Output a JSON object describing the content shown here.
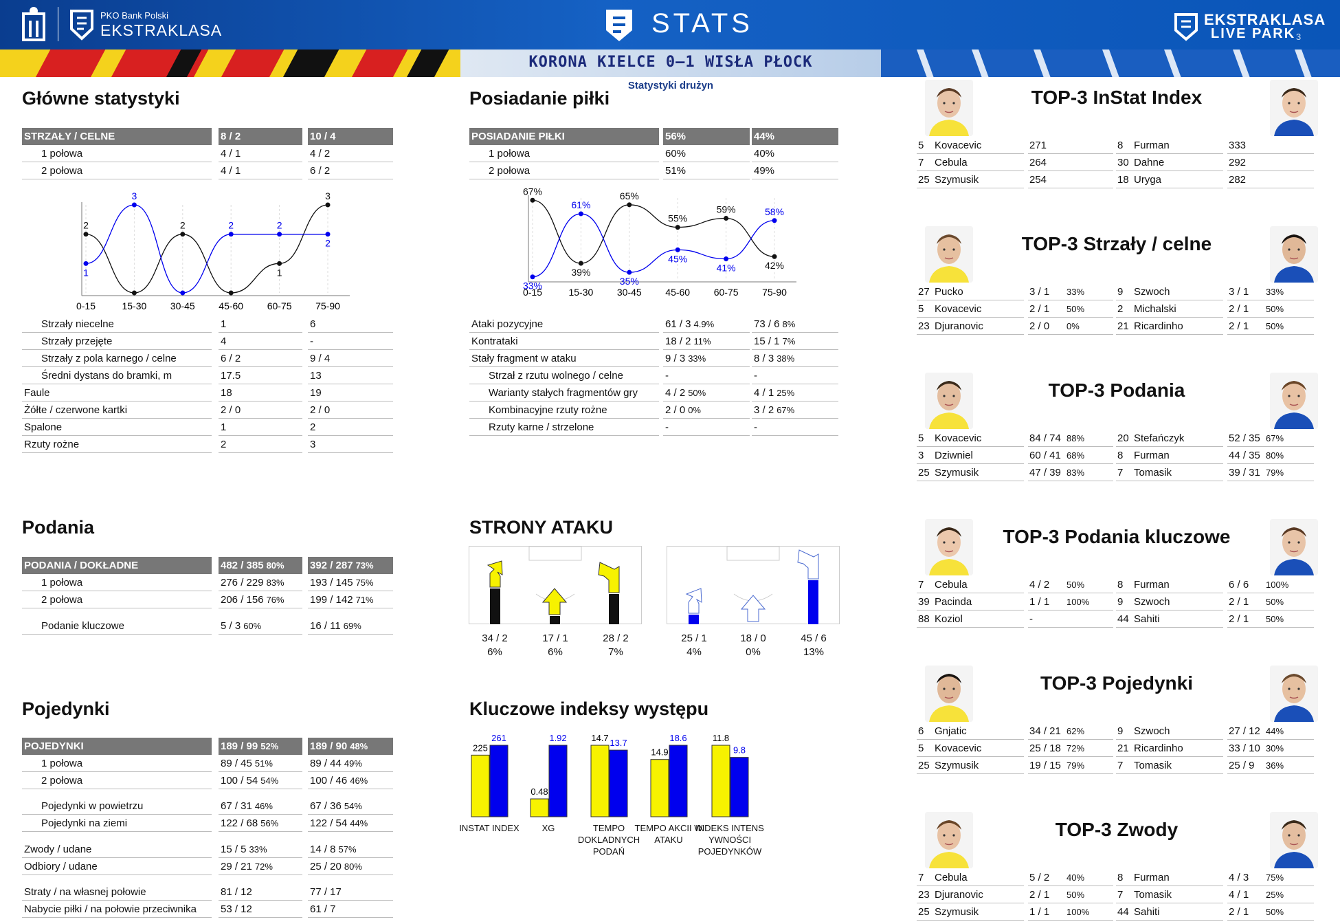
{
  "header": {
    "brand_small": "PKO Bank Polski",
    "brand": "EKSTRAKLASA",
    "title": "STATS",
    "right_brand": "EKSTRAKLASA",
    "right_sub": "LIVE PARK",
    "page": "3"
  },
  "match": {
    "title": "KORONA KIELCE 0–1 WISŁA PŁOCK",
    "subtitle": "Statystyki drużyn"
  },
  "colors": {
    "home": "#f7f200",
    "away": "#0000ee",
    "header_blue": "#0a55b8",
    "table_header": "#777777"
  },
  "main": {
    "title": "Główne statystyki",
    "header": [
      "STRZAŁY / CELNE",
      "8 / 2",
      "10 / 4"
    ],
    "rows": [
      [
        "1 połowa",
        "4 / 1",
        "4 / 2"
      ],
      [
        "2 połowa",
        "4 / 1",
        "6 / 2"
      ]
    ],
    "rows2": [
      [
        "Strzały niecelne",
        "1",
        "6"
      ],
      [
        "Strzały przejęte",
        "4",
        "-"
      ],
      [
        "Strzały z pola karnego / celne",
        "6 / 2",
        "9 / 4"
      ],
      [
        "Średni dystans do bramki, m",
        "17.5",
        "13"
      ],
      [
        "Faule",
        "18",
        "19"
      ],
      [
        "Żółte / czerwone kartki",
        "2 / 0",
        "2 / 0"
      ],
      [
        "Spalone",
        "1",
        "2"
      ],
      [
        "Rzuty rożne",
        "2",
        "3"
      ]
    ]
  },
  "possession": {
    "title": "Posiadanie piłki",
    "header": [
      "POSIADANIE PIŁKI",
      "56%",
      "44%"
    ],
    "rows": [
      [
        "1 połowa",
        "60%",
        "40%"
      ],
      [
        "2 połowa",
        "51%",
        "49%"
      ]
    ],
    "rows2": [
      [
        "Ataki pozycyjne",
        "61 / 3",
        "4.9%",
        "73 / 6",
        "8%"
      ],
      [
        "Kontrataki",
        "18 / 2",
        "11%",
        "15 / 1",
        "7%"
      ],
      [
        "Stały fragment w ataku",
        "9 / 3",
        "33%",
        "8 / 3",
        "38%"
      ],
      [
        "Strzał z rzutu wolnego / celne",
        "-",
        "",
        "-",
        ""
      ],
      [
        "Warianty stałych fragmentów gry",
        "4 / 2",
        "50%",
        "4 / 1",
        "25%"
      ],
      [
        "Kombinacyjne rzuty rożne",
        "2 / 0",
        "0%",
        "3 / 2",
        "67%"
      ],
      [
        "Rzuty karne /  strzelone",
        "-",
        "",
        "-",
        ""
      ]
    ]
  },
  "chart_data": [
    {
      "type": "line",
      "categories": [
        "0-15",
        "15-30",
        "30-45",
        "45-60",
        "60-75",
        "75-90"
      ],
      "series": [
        {
          "values": [
            2,
            0,
            2,
            0,
            1,
            3
          ],
          "labels": [
            "2",
            "",
            "2",
            "",
            "1",
            "3"
          ]
        },
        {
          "values": [
            1,
            3,
            0,
            2,
            2,
            2
          ],
          "labels": [
            "1",
            "3",
            "",
            "2",
            "2",
            "2"
          ]
        }
      ],
      "xlabel": "",
      "ylabel": "",
      "ylim": [
        0,
        3
      ],
      "grid": false
    },
    {
      "type": "line",
      "categories": [
        "0-15",
        "15-30",
        "30-45",
        "45-60",
        "60-75",
        "75-90"
      ],
      "series": [
        {
          "values": [
            67,
            39,
            65,
            55,
            59,
            42
          ],
          "labels": [
            "67%",
            "39%",
            "65%",
            "55%",
            "59%",
            "42%"
          ]
        },
        {
          "values": [
            33,
            61,
            35,
            45,
            41,
            58
          ],
          "labels": [
            "33%",
            "61%",
            "35%",
            "45%",
            "41%",
            "58%"
          ]
        }
      ],
      "xlabel": "",
      "ylabel": "",
      "ylim": [
        30,
        70
      ],
      "grid": false
    },
    {
      "type": "bar",
      "title": "Kluczowe indeksy występu",
      "categories": [
        "INSTAT INDEX",
        "XG",
        "TEMPO DOKLADNYCH PODAŃ",
        "TEMPO AKCII W ATAKU",
        "INDEKS INTENSYWNOŚCI POJEDYNKÓW"
      ],
      "series": [
        {
          "values": [
            225,
            0.48,
            14.7,
            14.9,
            11.8
          ]
        },
        {
          "values": [
            261,
            1.92,
            13.7,
            18.6,
            9.8
          ]
        }
      ]
    }
  ],
  "passes": {
    "title": "Podania",
    "header": [
      "PODANIA / DOKŁADNE",
      "482 / 385",
      "80%",
      "392 / 287",
      "73%"
    ],
    "rows": [
      [
        "1 połowa",
        "276 / 229",
        "83%",
        "193 / 145",
        "75%"
      ],
      [
        "2 połowa",
        "206 / 156",
        "76%",
        "199 / 142",
        "71%"
      ],
      [
        "Podanie kluczowe",
        "5 / 3",
        "60%",
        "16 / 11",
        "69%"
      ]
    ]
  },
  "attack": {
    "title": "STRONY ATAKU",
    "home": [
      [
        "34 / 2",
        "6%"
      ],
      [
        "17 / 1",
        "6%"
      ],
      [
        "28 / 2",
        "7%"
      ]
    ],
    "away": [
      [
        "25 / 1",
        "4%"
      ],
      [
        "18 / 0",
        "0%"
      ],
      [
        "45 / 6",
        "13%"
      ]
    ]
  },
  "duels": {
    "title": "Pojedynki",
    "header": [
      "POJEDYNKI",
      "189 / 99",
      "52%",
      "189 / 90",
      "48%"
    ],
    "rows": [
      [
        "1 połowa",
        "89 / 45",
        "51%",
        "89 / 44",
        "49%"
      ],
      [
        "2 połowa",
        "100 / 54",
        "54%",
        "100 / 46",
        "46%"
      ],
      [
        "Pojedynki w powietrzu",
        "67 / 31",
        "46%",
        "67 / 36",
        "54%"
      ],
      [
        "Pojedynki na ziemi",
        "122 / 68",
        "56%",
        "122 / 54",
        "44%"
      ],
      [
        "Zwody / udane",
        "15 / 5",
        "33%",
        "14 / 8",
        "57%"
      ],
      [
        "Odbiory / udane",
        "29 / 21",
        "72%",
        "25 / 20",
        "80%"
      ],
      [
        "Straty / na własnej połowie",
        "81 / 12",
        "",
        "77 / 17",
        ""
      ],
      [
        "Nabycie piłki / na połowie przeciwnika",
        "53 / 12",
        "",
        "61 / 7",
        ""
      ]
    ]
  },
  "indexes": {
    "title": "Kluczowe indeksy występu",
    "labels": [
      "INSTAT INDEX",
      "XG",
      "TEMPO\nDOKLADNYCH\nPODAŃ",
      "TEMPO AKCII W\nATAKU",
      "INDEKS INTENS\nYWNOŚCI\nPOJEDYNKÓW"
    ],
    "home": [
      "225",
      "0.48",
      "14.7",
      "14.9",
      "11.8"
    ],
    "away": [
      "261",
      "1.92",
      "13.7",
      "18.6",
      "9.8"
    ]
  },
  "tops": [
    {
      "title": "TOP-3 InStat Index",
      "home": [
        [
          "5",
          "Kovacevic",
          "271",
          ""
        ],
        [
          "7",
          "Cebula",
          "264",
          ""
        ],
        [
          "25",
          "Szymusik",
          "254",
          ""
        ]
      ],
      "away": [
        [
          "8",
          "Furman",
          "333",
          ""
        ],
        [
          "30",
          "Dahne",
          "292",
          ""
        ],
        [
          "18",
          "Uryga",
          "282",
          ""
        ]
      ]
    },
    {
      "title": "TOP-3 Strzały / celne",
      "home": [
        [
          "27",
          "Pucko",
          "3 / 1",
          "33%"
        ],
        [
          "5",
          "Kovacevic",
          "2 / 1",
          "50%"
        ],
        [
          "23",
          "Djuranovic",
          "2 / 0",
          "0%"
        ]
      ],
      "away": [
        [
          "9",
          "Szwoch",
          "3 / 1",
          "33%"
        ],
        [
          "2",
          "Michalski",
          "2 / 1",
          "50%"
        ],
        [
          "21",
          "Ricardinho",
          "2 / 1",
          "50%"
        ]
      ]
    },
    {
      "title": "TOP-3 Podania",
      "home": [
        [
          "5",
          "Kovacevic",
          "84 / 74",
          "88%"
        ],
        [
          "3",
          "Dziwniel",
          "60 / 41",
          "68%"
        ],
        [
          "25",
          "Szymusik",
          "47 / 39",
          "83%"
        ]
      ],
      "away": [
        [
          "20",
          "Stefańczyk",
          "52 / 35",
          "67%"
        ],
        [
          "8",
          "Furman",
          "44 / 35",
          "80%"
        ],
        [
          "7",
          "Tomasik",
          "39 / 31",
          "79%"
        ]
      ]
    },
    {
      "title": "TOP-3 Podania kluczowe",
      "home": [
        [
          "7",
          "Cebula",
          "4 / 2",
          "50%"
        ],
        [
          "39",
          "Pacinda",
          "1 / 1",
          "100%"
        ],
        [
          "88",
          "Koziol",
          "-",
          ""
        ]
      ],
      "away": [
        [
          "8",
          "Furman",
          "6 / 6",
          "100%"
        ],
        [
          "9",
          "Szwoch",
          "2 / 1",
          "50%"
        ],
        [
          "44",
          "Sahiti",
          "2 / 1",
          "50%"
        ]
      ]
    },
    {
      "title": "TOP-3 Pojedynki",
      "home": [
        [
          "6",
          "Gnjatic",
          "34 / 21",
          "62%"
        ],
        [
          "5",
          "Kovacevic",
          "25 / 18",
          "72%"
        ],
        [
          "25",
          "Szymusik",
          "19 / 15",
          "79%"
        ]
      ],
      "away": [
        [
          "9",
          "Szwoch",
          "27 / 12",
          "44%"
        ],
        [
          "21",
          "Ricardinho",
          "33 / 10",
          "30%"
        ],
        [
          "7",
          "Tomasik",
          "25 / 9",
          "36%"
        ]
      ]
    },
    {
      "title": "TOP-3 Zwody",
      "home": [
        [
          "7",
          "Cebula",
          "5 / 2",
          "40%"
        ],
        [
          "23",
          "Djuranovic",
          "2 / 1",
          "50%"
        ],
        [
          "25",
          "Szymusik",
          "1 / 1",
          "100%"
        ]
      ],
      "away": [
        [
          "8",
          "Furman",
          "4 / 3",
          "75%"
        ],
        [
          "7",
          "Tomasik",
          "4 / 1",
          "25%"
        ],
        [
          "44",
          "Sahiti",
          "2 / 1",
          "50%"
        ]
      ]
    }
  ]
}
